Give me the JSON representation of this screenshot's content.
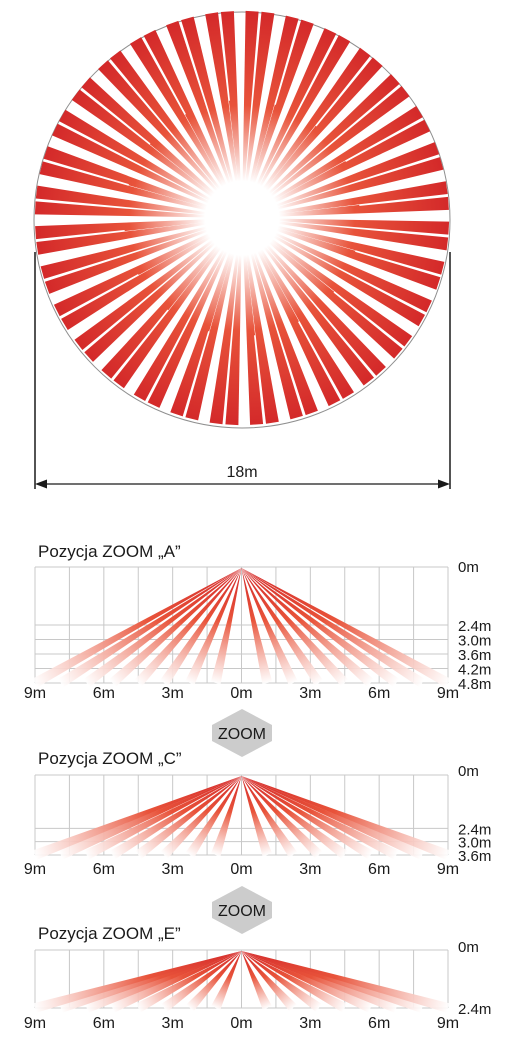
{
  "colors": {
    "beam_dark": "#d42a2a",
    "beam_mid": "#e8533a",
    "beam_light": "#f6b6a6",
    "grid_line": "#c8c8c8",
    "outline": "#8f8f8f",
    "zoom_arrow": "#cccccc",
    "text": "#1a1a1a"
  },
  "top_view": {
    "shape": "circle",
    "dimension_label": "18m",
    "long_beam_count": 32,
    "short_beam_count": 16
  },
  "zoom_arrow_label": "ZOOM",
  "zoom_positions": [
    {
      "title": "Pozycja ZOOM „A”",
      "depth_labels": [
        "0m",
        "2.4m",
        "3.0m",
        "3.6m",
        "4.2m",
        "4.8m"
      ],
      "depth_values": [
        0,
        2.4,
        3.0,
        3.6,
        4.2,
        4.8
      ],
      "floor_depth": 4.8
    },
    {
      "title": "Pozycja ZOOM „C”",
      "depth_labels": [
        "0m",
        "2.4m",
        "3.0m",
        "3.6m"
      ],
      "depth_values": [
        0,
        2.4,
        3.0,
        3.6
      ],
      "floor_depth": 3.6
    },
    {
      "title": "Pozycja ZOOM „E”",
      "depth_labels": [
        "0m",
        "2.4m"
      ],
      "depth_values": [
        0,
        2.4
      ],
      "floor_depth": 2.4
    }
  ],
  "distance_axis_labels": [
    "9m",
    "6m",
    "3m",
    "0m",
    "3m",
    "6m",
    "9m"
  ],
  "distance_axis_values": [
    -9,
    -6,
    -3,
    0,
    3,
    6,
    9
  ]
}
